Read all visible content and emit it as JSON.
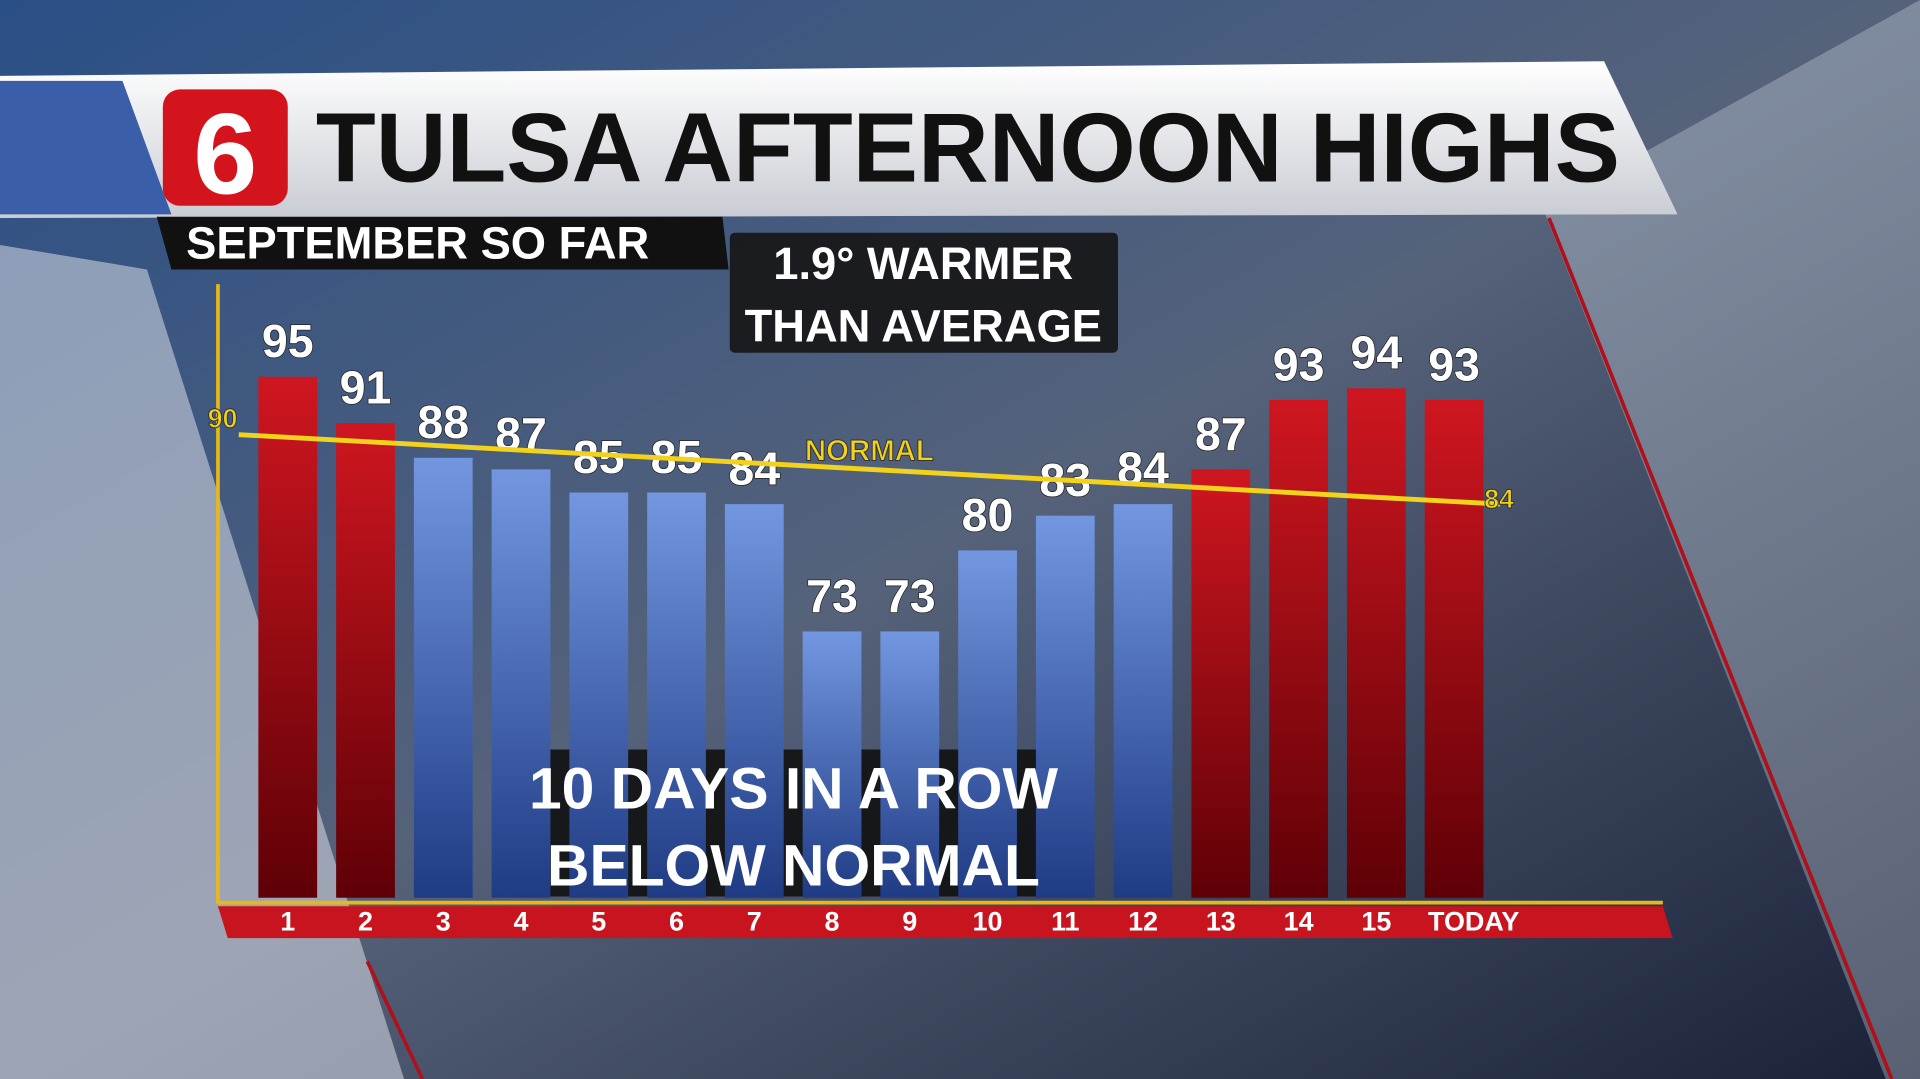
{
  "logo": "6",
  "chart_data": {
    "type": "bar",
    "title": "TULSA AFTERNOON HIGHS",
    "subtitle": "SEPTEMBER SO FAR",
    "categories": [
      "1",
      "2",
      "3",
      "4",
      "5",
      "6",
      "7",
      "8",
      "9",
      "10",
      "11",
      "12",
      "13",
      "14",
      "15",
      "TODAY"
    ],
    "values": [
      95,
      91,
      88,
      87,
      85,
      85,
      84,
      73,
      73,
      80,
      83,
      84,
      87,
      93,
      94,
      93
    ],
    "colors": [
      "red",
      "red",
      "blue",
      "blue",
      "blue",
      "blue",
      "blue",
      "blue",
      "blue",
      "blue",
      "blue",
      "blue",
      "red",
      "red",
      "red",
      "red"
    ],
    "ylim": [
      50,
      103
    ],
    "normal": {
      "label": "NORMAL",
      "values": [
        90,
        84
      ],
      "color": "#f2d21b"
    },
    "annotations": [
      {
        "lines": [
          "1.9° WARMER",
          "THAN AVERAGE"
        ]
      },
      {
        "lines": [
          "10 DAYS IN A ROW",
          "BELOW NORMAL"
        ]
      }
    ]
  }
}
